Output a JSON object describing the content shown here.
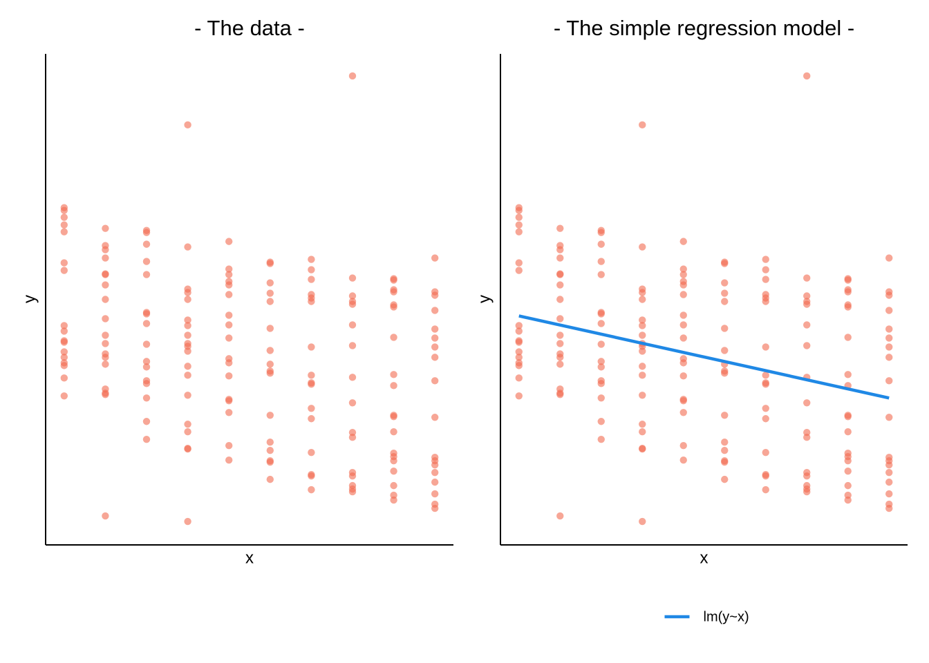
{
  "chart_data": [
    {
      "type": "scatter",
      "title": "- The data -",
      "x_label": "x",
      "y_label": "y",
      "color": "#f26b50",
      "xlim": [
        0.55,
        10.45
      ],
      "ylim": [
        0,
        71
      ],
      "x": [
        1,
        1,
        1,
        1,
        1,
        1,
        1,
        1,
        1,
        1,
        1,
        1,
        1,
        1,
        1,
        1,
        1,
        2,
        2,
        2,
        2,
        2,
        2,
        2,
        2,
        2,
        2,
        2,
        2,
        2,
        2,
        2,
        2,
        2,
        2,
        3,
        3,
        3,
        3,
        3,
        3,
        3,
        3,
        3,
        3,
        3,
        3,
        3,
        3,
        3,
        3,
        4,
        4,
        4,
        4,
        4,
        4,
        4,
        4,
        4,
        4,
        4,
        4,
        4,
        4,
        4,
        4,
        4,
        4,
        4,
        5,
        5,
        5,
        5,
        5,
        5,
        5,
        5,
        5,
        5,
        5,
        5,
        5,
        5,
        5,
        5,
        5,
        6,
        6,
        6,
        6,
        6,
        6,
        6,
        6,
        6,
        6,
        6,
        6,
        6,
        6,
        6,
        6,
        7,
        7,
        7,
        7,
        7,
        7,
        7,
        7,
        7,
        7,
        7,
        7,
        7,
        7,
        7,
        7,
        8,
        8,
        8,
        8,
        8,
        8,
        8,
        8,
        8,
        8,
        8,
        8,
        8,
        8,
        8,
        8,
        9,
        9,
        9,
        9,
        9,
        9,
        9,
        9,
        9,
        9,
        9,
        9,
        9,
        9,
        9,
        9,
        9,
        9,
        9,
        10,
        10,
        10,
        10,
        10,
        10,
        10,
        10,
        10,
        10,
        10,
        10,
        10,
        10,
        10,
        10,
        10,
        10
      ],
      "values": [
        48.9,
        48.5,
        47.5,
        46.4,
        45.4,
        40.9,
        39.8,
        31.8,
        31.0,
        29.6,
        29.4,
        28.0,
        27.2,
        26.4,
        26.0,
        24.2,
        21.6,
        45.9,
        43.4,
        42.8,
        41.6,
        39.3,
        39.2,
        37.7,
        35.6,
        32.8,
        30.4,
        29.2,
        27.7,
        27.2,
        26.2,
        22.6,
        22.0,
        21.8,
        4.2,
        45.6,
        45.3,
        43.6,
        41.1,
        39.2,
        33.7,
        33.5,
        32.1,
        29.1,
        26.6,
        25.8,
        23.8,
        23.4,
        21.3,
        17.9,
        15.3,
        60.9,
        43.2,
        37.1,
        36.6,
        35.6,
        32.6,
        31.8,
        30.4,
        29.2,
        28.8,
        28.1,
        25.9,
        24.6,
        21.7,
        17.5,
        16.4,
        14.0,
        13.9,
        3.4,
        44.0,
        40.0,
        39.2,
        38.2,
        37.7,
        36.3,
        33.3,
        31.9,
        30.0,
        27.0,
        26.4,
        24.5,
        21.1,
        20.9,
        19.2,
        14.4,
        12.3,
        41.0,
        40.8,
        38.0,
        36.5,
        35.3,
        31.4,
        28.2,
        26.2,
        25.2,
        24.9,
        18.8,
        14.9,
        13.7,
        12.2,
        12.0,
        9.5,
        41.4,
        39.9,
        38.5,
        36.3,
        35.8,
        35.3,
        28.7,
        24.6,
        23.5,
        23.3,
        19.8,
        18.3,
        13.4,
        10.2,
        10.0,
        8.0,
        68.0,
        38.7,
        36.1,
        35.3,
        34.9,
        31.9,
        28.9,
        24.3,
        20.6,
        16.3,
        15.6,
        10.5,
        10.0,
        8.6,
        8.1,
        7.7,
        38.6,
        38.4,
        37.0,
        36.7,
        34.8,
        34.5,
        30.1,
        24.7,
        23.1,
        18.8,
        18.6,
        16.4,
        13.3,
        12.8,
        12.2,
        10.7,
        8.6,
        7.2,
        6.5,
        41.6,
        36.7,
        36.2,
        34.0,
        31.3,
        30.0,
        28.7,
        27.2,
        23.8,
        18.5,
        12.7,
        12.2,
        11.6,
        10.5,
        9.1,
        7.4,
        5.9,
        5.3
      ]
    },
    {
      "type": "scatter",
      "title": "- The simple regression model -",
      "x_label": "x",
      "y_label": "y",
      "color": "#f26b50",
      "xlim": [
        0.55,
        10.45
      ],
      "ylim": [
        0,
        71
      ],
      "legend": "bottom",
      "x": [
        1,
        1,
        1,
        1,
        1,
        1,
        1,
        1,
        1,
        1,
        1,
        1,
        1,
        1,
        1,
        1,
        1,
        2,
        2,
        2,
        2,
        2,
        2,
        2,
        2,
        2,
        2,
        2,
        2,
        2,
        2,
        2,
        2,
        2,
        2,
        3,
        3,
        3,
        3,
        3,
        3,
        3,
        3,
        3,
        3,
        3,
        3,
        3,
        3,
        3,
        3,
        4,
        4,
        4,
        4,
        4,
        4,
        4,
        4,
        4,
        4,
        4,
        4,
        4,
        4,
        4,
        4,
        4,
        4,
        4,
        5,
        5,
        5,
        5,
        5,
        5,
        5,
        5,
        5,
        5,
        5,
        5,
        5,
        5,
        5,
        5,
        5,
        6,
        6,
        6,
        6,
        6,
        6,
        6,
        6,
        6,
        6,
        6,
        6,
        6,
        6,
        6,
        6,
        7,
        7,
        7,
        7,
        7,
        7,
        7,
        7,
        7,
        7,
        7,
        7,
        7,
        7,
        7,
        7,
        8,
        8,
        8,
        8,
        8,
        8,
        8,
        8,
        8,
        8,
        8,
        8,
        8,
        8,
        8,
        8,
        9,
        9,
        9,
        9,
        9,
        9,
        9,
        9,
        9,
        9,
        9,
        9,
        9,
        9,
        9,
        9,
        9,
        9,
        9,
        10,
        10,
        10,
        10,
        10,
        10,
        10,
        10,
        10,
        10,
        10,
        10,
        10,
        10,
        10,
        10,
        10,
        10
      ],
      "values": [
        48.9,
        48.5,
        47.5,
        46.4,
        45.4,
        40.9,
        39.8,
        31.8,
        31.0,
        29.6,
        29.4,
        28.0,
        27.2,
        26.4,
        26.0,
        24.2,
        21.6,
        45.9,
        43.4,
        42.8,
        41.6,
        39.3,
        39.2,
        37.7,
        35.6,
        32.8,
        30.4,
        29.2,
        27.7,
        27.2,
        26.2,
        22.6,
        22.0,
        21.8,
        4.2,
        45.6,
        45.3,
        43.6,
        41.1,
        39.2,
        33.7,
        33.5,
        32.1,
        29.1,
        26.6,
        25.8,
        23.8,
        23.4,
        21.3,
        17.9,
        15.3,
        60.9,
        43.2,
        37.1,
        36.6,
        35.6,
        32.6,
        31.8,
        30.4,
        29.2,
        28.8,
        28.1,
        25.9,
        24.6,
        21.7,
        17.5,
        16.4,
        14.0,
        13.9,
        3.4,
        44.0,
        40.0,
        39.2,
        38.2,
        37.7,
        36.3,
        33.3,
        31.9,
        30.0,
        27.0,
        26.4,
        24.5,
        21.1,
        20.9,
        19.2,
        14.4,
        12.3,
        41.0,
        40.8,
        38.0,
        36.5,
        35.3,
        31.4,
        28.2,
        26.2,
        25.2,
        24.9,
        18.8,
        14.9,
        13.7,
        12.2,
        12.0,
        9.5,
        41.4,
        39.9,
        38.5,
        36.3,
        35.8,
        35.3,
        28.7,
        24.6,
        23.5,
        23.3,
        19.8,
        18.3,
        13.4,
        10.2,
        10.0,
        8.0,
        68.0,
        38.7,
        36.1,
        35.3,
        34.9,
        31.9,
        28.9,
        24.3,
        20.6,
        16.3,
        15.6,
        10.5,
        10.0,
        8.6,
        8.1,
        7.7,
        38.6,
        38.4,
        37.0,
        36.7,
        34.8,
        34.5,
        30.1,
        24.7,
        23.1,
        18.8,
        18.6,
        16.4,
        13.3,
        12.8,
        12.2,
        10.7,
        8.6,
        7.2,
        6.5,
        41.6,
        36.7,
        36.2,
        34.0,
        31.3,
        30.0,
        28.7,
        27.2,
        23.8,
        18.5,
        12.7,
        12.2,
        11.6,
        10.5,
        9.1,
        7.4,
        5.9,
        5.3
      ],
      "line": {
        "name": "lm(y~x)",
        "color": "#1f88e5",
        "x": [
          1,
          10
        ],
        "values": [
          33.2,
          21.3
        ]
      }
    }
  ]
}
